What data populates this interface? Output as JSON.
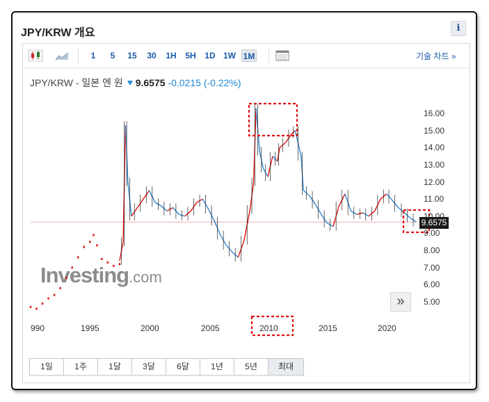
{
  "header": {
    "title": "JPY/KRW 개요",
    "info_label": "i"
  },
  "toolbar": {
    "periods": [
      "1",
      "5",
      "15",
      "30",
      "1H",
      "5H",
      "1D",
      "1W",
      "1M"
    ],
    "active_period": "1M",
    "tech_chart_link": "기술 차트 »"
  },
  "quote": {
    "name": "JPY/KRW - 일본 엔 원",
    "price": "9.6575",
    "change": "-0.0215",
    "change_pct": "(-0.22%)",
    "direction": "down"
  },
  "watermark": {
    "brand": "Investing",
    "suffix": ".com"
  },
  "range_buttons": [
    "1일",
    "1주",
    "1달",
    "3달",
    "6달",
    "1년",
    "5년",
    "최대"
  ],
  "range_active": "최대",
  "colors": {
    "up": "#e01010",
    "down": "#2e86d1",
    "accent": "#1a5aa8",
    "annotation": "#e01010"
  },
  "chart_data": {
    "type": "line",
    "title": "",
    "xlabel": "",
    "ylabel": "",
    "x_ticks": [
      "990",
      "1995",
      "2000",
      "2005",
      "2010",
      "2015",
      "2020"
    ],
    "y_ticks": [
      "5.00",
      "6.00",
      "7.00",
      "8.00",
      "9.00",
      "10.00",
      "11.00",
      "12.00",
      "13.00",
      "14.00",
      "15.00",
      "16.00"
    ],
    "ylim": [
      4.3,
      16.6
    ],
    "xlim": [
      1990.0,
      2022.6
    ],
    "last_price": "9.6575",
    "early_dotted_series": [
      [
        1990.0,
        4.7
      ],
      [
        1990.5,
        4.6
      ],
      [
        1991.0,
        4.9
      ],
      [
        1991.5,
        5.2
      ],
      [
        1992.0,
        5.4
      ],
      [
        1992.5,
        5.8
      ],
      [
        1993.0,
        6.4
      ],
      [
        1993.5,
        7.0
      ],
      [
        1994.0,
        7.6
      ],
      [
        1994.5,
        8.2
      ],
      [
        1995.0,
        8.5
      ],
      [
        1995.3,
        8.9
      ],
      [
        1995.6,
        8.3
      ],
      [
        1996.0,
        7.5
      ],
      [
        1996.5,
        7.3
      ],
      [
        1997.0,
        7.1
      ],
      [
        1997.5,
        7.2
      ]
    ],
    "main_series": [
      [
        1997.5,
        7.4
      ],
      [
        1997.8,
        8.5
      ],
      [
        1998.0,
        15.3
      ],
      [
        1998.2,
        12.0
      ],
      [
        1998.5,
        10.0
      ],
      [
        1999.0,
        10.5
      ],
      [
        1999.5,
        11.0
      ],
      [
        2000.0,
        11.5
      ],
      [
        2000.5,
        10.8
      ],
      [
        2001.0,
        10.6
      ],
      [
        2001.5,
        10.3
      ],
      [
        2002.0,
        10.5
      ],
      [
        2002.5,
        10.1
      ],
      [
        2003.0,
        10.0
      ],
      [
        2003.5,
        10.3
      ],
      [
        2004.0,
        10.8
      ],
      [
        2004.5,
        11.0
      ],
      [
        2005.0,
        10.4
      ],
      [
        2005.5,
        9.7
      ],
      [
        2006.0,
        8.9
      ],
      [
        2006.5,
        8.3
      ],
      [
        2007.0,
        7.9
      ],
      [
        2007.5,
        7.6
      ],
      [
        2008.0,
        8.6
      ],
      [
        2008.5,
        10.4
      ],
      [
        2008.8,
        12.0
      ],
      [
        2009.0,
        16.3
      ],
      [
        2009.3,
        13.8
      ],
      [
        2009.6,
        12.8
      ],
      [
        2010.0,
        12.3
      ],
      [
        2010.4,
        13.5
      ],
      [
        2010.8,
        13.2
      ],
      [
        2011.0,
        14.0
      ],
      [
        2011.5,
        14.3
      ],
      [
        2012.0,
        14.8
      ],
      [
        2012.3,
        15.0
      ],
      [
        2012.8,
        13.5
      ],
      [
        2013.0,
        11.5
      ],
      [
        2013.5,
        11.2
      ],
      [
        2014.0,
        10.7
      ],
      [
        2014.5,
        10.1
      ],
      [
        2015.0,
        9.6
      ],
      [
        2015.5,
        9.4
      ],
      [
        2016.0,
        10.6
      ],
      [
        2016.5,
        11.3
      ],
      [
        2017.0,
        10.3
      ],
      [
        2017.5,
        10.1
      ],
      [
        2018.0,
        10.2
      ],
      [
        2018.5,
        10.0
      ],
      [
        2019.0,
        10.3
      ],
      [
        2019.5,
        11.0
      ],
      [
        2020.0,
        11.3
      ],
      [
        2020.4,
        11.0
      ],
      [
        2021.0,
        10.5
      ],
      [
        2021.5,
        10.2
      ],
      [
        2022.0,
        9.9
      ],
      [
        2022.5,
        9.66
      ]
    ]
  }
}
